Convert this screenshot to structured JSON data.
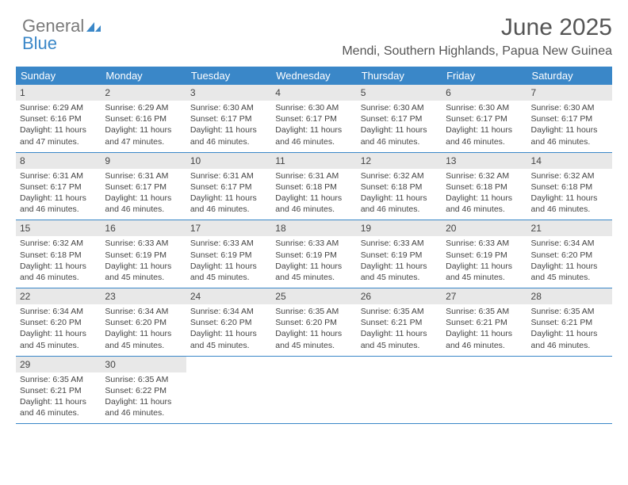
{
  "brand": {
    "part1": "General",
    "part2": "Blue"
  },
  "title": "June 2025",
  "location": "Mendi, Southern Highlands, Papua New Guinea",
  "colors": {
    "accent": "#3a87c8",
    "dow_text": "#ffffff",
    "daynum_bg": "#e8e8e8",
    "body_bg": "#ffffff",
    "text": "#444444"
  },
  "days_of_week": [
    "Sunday",
    "Monday",
    "Tuesday",
    "Wednesday",
    "Thursday",
    "Friday",
    "Saturday"
  ],
  "weeks": [
    [
      {
        "n": "1",
        "sr": "Sunrise: 6:29 AM",
        "ss": "Sunset: 6:16 PM",
        "dl": "Daylight: 11 hours and 47 minutes."
      },
      {
        "n": "2",
        "sr": "Sunrise: 6:29 AM",
        "ss": "Sunset: 6:16 PM",
        "dl": "Daylight: 11 hours and 47 minutes."
      },
      {
        "n": "3",
        "sr": "Sunrise: 6:30 AM",
        "ss": "Sunset: 6:17 PM",
        "dl": "Daylight: 11 hours and 46 minutes."
      },
      {
        "n": "4",
        "sr": "Sunrise: 6:30 AM",
        "ss": "Sunset: 6:17 PM",
        "dl": "Daylight: 11 hours and 46 minutes."
      },
      {
        "n": "5",
        "sr": "Sunrise: 6:30 AM",
        "ss": "Sunset: 6:17 PM",
        "dl": "Daylight: 11 hours and 46 minutes."
      },
      {
        "n": "6",
        "sr": "Sunrise: 6:30 AM",
        "ss": "Sunset: 6:17 PM",
        "dl": "Daylight: 11 hours and 46 minutes."
      },
      {
        "n": "7",
        "sr": "Sunrise: 6:30 AM",
        "ss": "Sunset: 6:17 PM",
        "dl": "Daylight: 11 hours and 46 minutes."
      }
    ],
    [
      {
        "n": "8",
        "sr": "Sunrise: 6:31 AM",
        "ss": "Sunset: 6:17 PM",
        "dl": "Daylight: 11 hours and 46 minutes."
      },
      {
        "n": "9",
        "sr": "Sunrise: 6:31 AM",
        "ss": "Sunset: 6:17 PM",
        "dl": "Daylight: 11 hours and 46 minutes."
      },
      {
        "n": "10",
        "sr": "Sunrise: 6:31 AM",
        "ss": "Sunset: 6:17 PM",
        "dl": "Daylight: 11 hours and 46 minutes."
      },
      {
        "n": "11",
        "sr": "Sunrise: 6:31 AM",
        "ss": "Sunset: 6:18 PM",
        "dl": "Daylight: 11 hours and 46 minutes."
      },
      {
        "n": "12",
        "sr": "Sunrise: 6:32 AM",
        "ss": "Sunset: 6:18 PM",
        "dl": "Daylight: 11 hours and 46 minutes."
      },
      {
        "n": "13",
        "sr": "Sunrise: 6:32 AM",
        "ss": "Sunset: 6:18 PM",
        "dl": "Daylight: 11 hours and 46 minutes."
      },
      {
        "n": "14",
        "sr": "Sunrise: 6:32 AM",
        "ss": "Sunset: 6:18 PM",
        "dl": "Daylight: 11 hours and 46 minutes."
      }
    ],
    [
      {
        "n": "15",
        "sr": "Sunrise: 6:32 AM",
        "ss": "Sunset: 6:18 PM",
        "dl": "Daylight: 11 hours and 46 minutes."
      },
      {
        "n": "16",
        "sr": "Sunrise: 6:33 AM",
        "ss": "Sunset: 6:19 PM",
        "dl": "Daylight: 11 hours and 45 minutes."
      },
      {
        "n": "17",
        "sr": "Sunrise: 6:33 AM",
        "ss": "Sunset: 6:19 PM",
        "dl": "Daylight: 11 hours and 45 minutes."
      },
      {
        "n": "18",
        "sr": "Sunrise: 6:33 AM",
        "ss": "Sunset: 6:19 PM",
        "dl": "Daylight: 11 hours and 45 minutes."
      },
      {
        "n": "19",
        "sr": "Sunrise: 6:33 AM",
        "ss": "Sunset: 6:19 PM",
        "dl": "Daylight: 11 hours and 45 minutes."
      },
      {
        "n": "20",
        "sr": "Sunrise: 6:33 AM",
        "ss": "Sunset: 6:19 PM",
        "dl": "Daylight: 11 hours and 45 minutes."
      },
      {
        "n": "21",
        "sr": "Sunrise: 6:34 AM",
        "ss": "Sunset: 6:20 PM",
        "dl": "Daylight: 11 hours and 45 minutes."
      }
    ],
    [
      {
        "n": "22",
        "sr": "Sunrise: 6:34 AM",
        "ss": "Sunset: 6:20 PM",
        "dl": "Daylight: 11 hours and 45 minutes."
      },
      {
        "n": "23",
        "sr": "Sunrise: 6:34 AM",
        "ss": "Sunset: 6:20 PM",
        "dl": "Daylight: 11 hours and 45 minutes."
      },
      {
        "n": "24",
        "sr": "Sunrise: 6:34 AM",
        "ss": "Sunset: 6:20 PM",
        "dl": "Daylight: 11 hours and 45 minutes."
      },
      {
        "n": "25",
        "sr": "Sunrise: 6:35 AM",
        "ss": "Sunset: 6:20 PM",
        "dl": "Daylight: 11 hours and 45 minutes."
      },
      {
        "n": "26",
        "sr": "Sunrise: 6:35 AM",
        "ss": "Sunset: 6:21 PM",
        "dl": "Daylight: 11 hours and 45 minutes."
      },
      {
        "n": "27",
        "sr": "Sunrise: 6:35 AM",
        "ss": "Sunset: 6:21 PM",
        "dl": "Daylight: 11 hours and 46 minutes."
      },
      {
        "n": "28",
        "sr": "Sunrise: 6:35 AM",
        "ss": "Sunset: 6:21 PM",
        "dl": "Daylight: 11 hours and 46 minutes."
      }
    ],
    [
      {
        "n": "29",
        "sr": "Sunrise: 6:35 AM",
        "ss": "Sunset: 6:21 PM",
        "dl": "Daylight: 11 hours and 46 minutes."
      },
      {
        "n": "30",
        "sr": "Sunrise: 6:35 AM",
        "ss": "Sunset: 6:22 PM",
        "dl": "Daylight: 11 hours and 46 minutes."
      },
      null,
      null,
      null,
      null,
      null
    ]
  ]
}
